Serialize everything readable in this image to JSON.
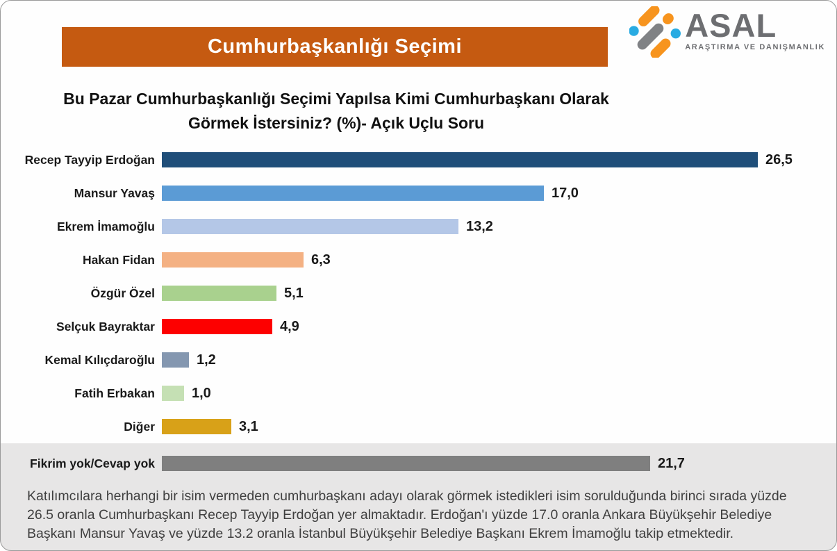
{
  "header": {
    "banner_title": "Cumhurbaşkanlığı Seçimi",
    "banner_color": "#c55a11",
    "logo_name": "ASAL",
    "logo_subtitle": "ARAŞTIRMA VE DANIŞMANLIK",
    "logo_colors": {
      "orange": "#f7941e",
      "blue": "#29abe2",
      "gray": "#808285"
    }
  },
  "question_title": "Bu Pazar Cumhurbaşkanlığı Seçimi Yapılsa Kimi Cumhurbaşkanı Olarak Görmek İstersiniz? (%)- Açık Uçlu Soru",
  "chart_data": {
    "type": "bar",
    "orientation": "horizontal",
    "title": "Bu Pazar Cumhurbaşkanlığı Seçimi Yapılsa Kimi Cumhurbaşkanı Olarak Görmek İstersiniz? (%)- Açık Uçlu Soru",
    "categories": [
      "Recep Tayyip Erdoğan",
      "Mansur Yavaş",
      "Ekrem İmamoğlu",
      "Hakan Fidan",
      "Özgür Özel",
      "Selçuk Bayraktar",
      "Kemal Kılıçdaroğlu",
      "Fatih Erbakan",
      "Diğer",
      "Fikrim yok/Cevap yok"
    ],
    "values": [
      26.5,
      17.0,
      13.2,
      6.3,
      5.1,
      4.9,
      1.2,
      1.0,
      3.1,
      21.7
    ],
    "display_values": [
      "26,5",
      "17,0",
      "13,2",
      "6,3",
      "5,1",
      "4,9",
      "1,2",
      "1,0",
      "3,1",
      "21,7"
    ],
    "colors": [
      "#1f4e79",
      "#5b9bd5",
      "#b4c7e7",
      "#f4b183",
      "#a9d18e",
      "#fd0000",
      "#8497b0",
      "#c5e0b4",
      "#d8a118",
      "#7f7f7f"
    ],
    "xlabel": "",
    "ylabel": "",
    "xlim": [
      0,
      26.5
    ],
    "grid": false,
    "legend": false,
    "value_format": "comma-decimal"
  },
  "footer_note": "Katılımcılara herhangi bir isim vermeden cumhurbaşkanı adayı olarak görmek istedikleri isim sorulduğunda birinci sırada yüzde 26.5 oranla Cumhurbaşkanı Recep Tayyip Erdoğan yer almaktadır. Erdoğan'ı yüzde 17.0 oranla Ankara Büyükşehir Belediye Başkanı Mansur Yavaş ve yüzde 13.2 oranla İstanbul Büyükşehir Belediye Başkanı Ekrem İmamoğlu takip etmektedir."
}
